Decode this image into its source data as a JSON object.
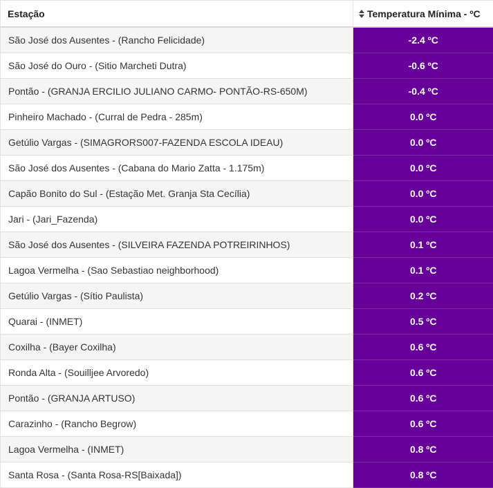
{
  "table": {
    "headers": {
      "station": "Estação",
      "temperature": "Temperatura Mínima - ºC"
    },
    "icons": {
      "sort": "sort-icon"
    },
    "colors": {
      "temp_cell_bg": "#660099",
      "temp_cell_text": "#ffffff"
    },
    "rows": [
      {
        "station": "São José dos Ausentes - (Rancho Felicidade)",
        "temp": "-2.4 ºC"
      },
      {
        "station": "São José do Ouro - (Sitio Marcheti Dutra)",
        "temp": "-0.6 ºC"
      },
      {
        "station": "Pontão - (GRANJA ERCILIO JULIANO CARMO- PONTÃO-RS-650M)",
        "temp": "-0.4 ºC"
      },
      {
        "station": "Pinheiro Machado - (Curral de Pedra - 285m)",
        "temp": "0.0 ºC"
      },
      {
        "station": "Getúlio Vargas - (SIMAGRORS007-FAZENDA ESCOLA IDEAU)",
        "temp": "0.0 ºC"
      },
      {
        "station": "São José dos Ausentes - (Cabana do Mario Zatta - 1.175m)",
        "temp": "0.0 ºC"
      },
      {
        "station": "Capão Bonito do Sul - (Estação Met. Granja Sta Cecília)",
        "temp": "0.0 ºC"
      },
      {
        "station": "Jari - (Jari_Fazenda)",
        "temp": "0.0 ºC"
      },
      {
        "station": "São José dos Ausentes - (SILVEIRA FAZENDA POTREIRINHOS)",
        "temp": "0.1 ºC"
      },
      {
        "station": "Lagoa Vermelha - (Sao Sebastiao neighborhood)",
        "temp": "0.1 ºC"
      },
      {
        "station": "Getúlio Vargas - (Sítio Paulista)",
        "temp": "0.2 ºC"
      },
      {
        "station": "Quarai - (INMET)",
        "temp": "0.5 ºC"
      },
      {
        "station": "Coxilha - (Bayer Coxilha)",
        "temp": "0.6 ºC"
      },
      {
        "station": "Ronda Alta - (Souilljee Arvoredo)",
        "temp": "0.6 ºC"
      },
      {
        "station": "Pontão - (GRANJA ARTUSO)",
        "temp": "0.6 ºC"
      },
      {
        "station": "Carazinho - (Rancho Begrow)",
        "temp": "0.6 ºC"
      },
      {
        "station": "Lagoa Vermelha - (INMET)",
        "temp": "0.8 ºC"
      },
      {
        "station": "Santa Rosa - (Santa Rosa-RS[Baixada])",
        "temp": "0.8 ºC"
      }
    ]
  }
}
